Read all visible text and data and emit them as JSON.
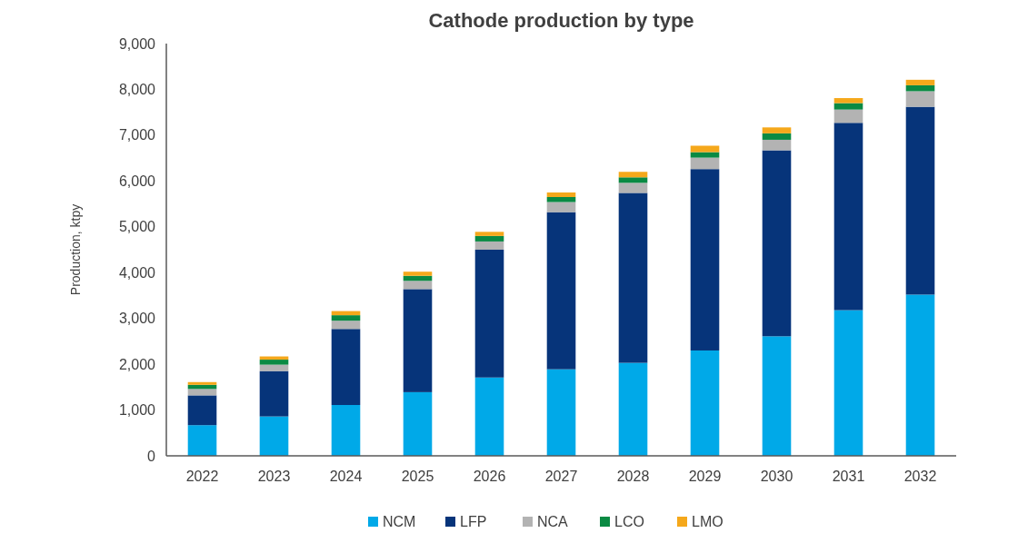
{
  "chart_data": {
    "type": "bar",
    "title": "Cathode production by type",
    "ylabel": "Production, ktpy",
    "stacked": true,
    "legend": "bottom",
    "grid": false,
    "categories": [
      "2022",
      "2023",
      "2024",
      "2025",
      "2026",
      "2027",
      "2028",
      "2029",
      "2030",
      "2031",
      "2032"
    ],
    "ylim": [
      0,
      9000
    ],
    "yticks": [
      {
        "value": 0,
        "label": "0"
      },
      {
        "value": 1000,
        "label": "1,000"
      },
      {
        "value": 2000,
        "label": "2,000"
      },
      {
        "value": 3000,
        "label": "3,000"
      },
      {
        "value": 4000,
        "label": "4,000"
      },
      {
        "value": 5000,
        "label": "5,000"
      },
      {
        "value": 6000,
        "label": "6,000"
      },
      {
        "value": 7000,
        "label": "7,000"
      },
      {
        "value": 8000,
        "label": "8,000"
      },
      {
        "value": 9000,
        "label": "9,000"
      }
    ],
    "series": [
      {
        "name": "NCM",
        "color": "#00a9e8",
        "values": [
          670,
          860,
          1110,
          1390,
          1710,
          1890,
          2030,
          2300,
          2610,
          3180,
          3520
        ]
      },
      {
        "name": "LFP",
        "color": "#06347a",
        "values": [
          650,
          990,
          1660,
          2250,
          2790,
          3430,
          3710,
          3960,
          4060,
          4090,
          4100
        ]
      },
      {
        "name": "NCA",
        "color": "#b3b3b3",
        "values": [
          140,
          140,
          180,
          180,
          180,
          220,
          220,
          250,
          230,
          290,
          340
        ]
      },
      {
        "name": "LCO",
        "color": "#0a8a43",
        "values": [
          90,
          110,
          120,
          110,
          120,
          110,
          120,
          120,
          140,
          140,
          130
        ]
      },
      {
        "name": "LMO",
        "color": "#f5a81b",
        "values": [
          60,
          70,
          90,
          90,
          90,
          100,
          120,
          140,
          130,
          110,
          120
        ]
      }
    ]
  }
}
